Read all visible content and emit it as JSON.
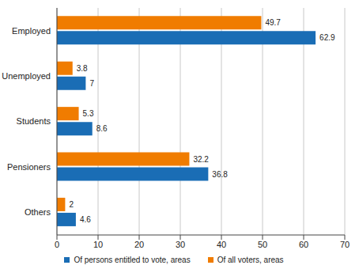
{
  "chart_data": {
    "type": "bar",
    "orientation": "horizontal",
    "categories": [
      "Employed",
      "Unemployed",
      "Students",
      "Pensioners",
      "Others"
    ],
    "series": [
      {
        "name": "Of persons entitled to vote, areas",
        "color": "#1a6db5",
        "values": [
          62.9,
          7.0,
          8.6,
          36.8,
          4.6
        ]
      },
      {
        "name": "Of all voters, areas",
        "color": "#f07c00",
        "values": [
          49.7,
          3.8,
          5.3,
          32.2,
          2.0
        ]
      }
    ],
    "xlim": [
      0,
      70
    ],
    "xticks": [
      0,
      10,
      20,
      30,
      40,
      50,
      60,
      70
    ],
    "grid": true,
    "data_labels": true,
    "legend": "bottom"
  }
}
